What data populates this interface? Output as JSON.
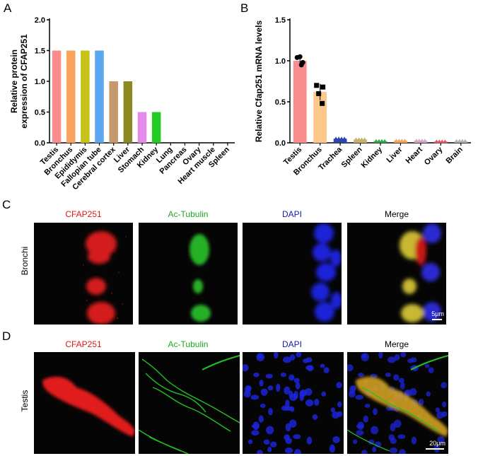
{
  "panels": {
    "a": "A",
    "b": "B",
    "c": "C",
    "d": "D"
  },
  "chart_data": [
    {
      "type": "bar",
      "ylabel": "Relative protein\nexpression of CFAP251",
      "ylabel_lines": [
        "Relative protein",
        "expression of CFAP251"
      ],
      "categories": [
        "Testis",
        "Bronchus",
        "Epididymis",
        "Fallopian tube",
        "Cerebral cortex",
        "Liver",
        "Stomach",
        "Kidney",
        "Lung",
        "Pancreas",
        "Ovary",
        "Heart muscle",
        "Spleen"
      ],
      "values": [
        1.5,
        1.5,
        1.5,
        1.5,
        1.0,
        1.0,
        0.5,
        0.5,
        0,
        0,
        0,
        0,
        0
      ],
      "colors": [
        "#f98c8c",
        "#f7a35c",
        "#c7c21a",
        "#5ba7f2",
        "#c49a6c",
        "#8a8a20",
        "#e58ae8",
        "#22cc22",
        "#888888",
        "#888888",
        "#888888",
        "#888888",
        "#888888"
      ],
      "ylim": [
        0,
        2.0
      ],
      "yticks": [
        "0.0",
        "0.5",
        "1.0",
        "1.5",
        "2.0"
      ]
    },
    {
      "type": "bar",
      "ylabel": "Relative Cfap251 mRNA levels",
      "categories": [
        "Testis",
        "Bronchus",
        "Trachea",
        "Spleen",
        "Kidney",
        "Liver",
        "Heart",
        "Ovary",
        "Brain"
      ],
      "values": [
        1.0,
        0.62,
        0.05,
        0.04,
        0.02,
        0.025,
        0.025,
        0.015,
        0.02
      ],
      "colors": [
        "#f98c8c",
        "#fcc98a",
        "#2a46a8",
        "#c9b06a",
        "#2aa84a",
        "#f7a35c",
        "#d9a0c8",
        "#e6506a",
        "#b0b0b0"
      ],
      "ylim": [
        0,
        1.5
      ],
      "yticks": [
        "0.0",
        "0.5",
        "1.0",
        "1.5"
      ]
    }
  ],
  "rows": {
    "c": {
      "label": "Bronchi",
      "channels": [
        "CFAP251",
        "Ac-Tubulin",
        "DAPI",
        "Merge"
      ],
      "scalebar": "5μm"
    },
    "d": {
      "label": "Testis",
      "channels": [
        "CFAP251",
        "Ac-Tubulin",
        "DAPI",
        "Merge"
      ],
      "scalebar": "20μm"
    }
  },
  "colors": {
    "red": "#ff2020",
    "green": "#1fb81f",
    "blue": "#1a1acc"
  }
}
